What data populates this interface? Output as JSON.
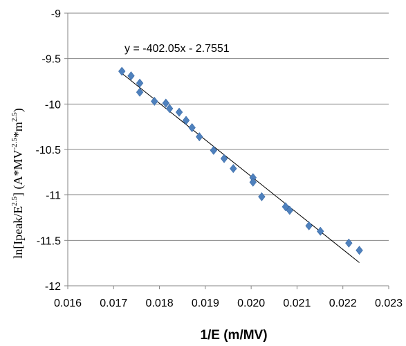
{
  "chart_data": {
    "type": "scatter",
    "title": "",
    "xlabel": "1/E (m/MV)",
    "ylabel": {
      "prefix": "ln[Ipeak/E",
      "exp1": "2.5",
      "middle": "] (A*MV",
      "exp2": "-2.5",
      "middle2": "*m",
      "exp3": "2.5",
      "suffix": ")"
    },
    "xlim": [
      0.016,
      0.023
    ],
    "ylim": [
      -12,
      -9
    ],
    "xticks": [
      "0.016",
      "0.017",
      "0.018",
      "0.019",
      "0.020",
      "0.021",
      "0.022",
      "0.023"
    ],
    "yticks": [
      "-12",
      "-11.5",
      "-11",
      "-10.5",
      "-10",
      "-9.5",
      "-9"
    ],
    "grid": "horizontal",
    "legend": "none",
    "marker_color": "#4F81BD",
    "marker_shape": "diamond",
    "points": [
      {
        "x": 0.01718,
        "y": -9.64
      },
      {
        "x": 0.01738,
        "y": -9.69
      },
      {
        "x": 0.01757,
        "y": -9.77
      },
      {
        "x": 0.01757,
        "y": -9.87
      },
      {
        "x": 0.01789,
        "y": -9.97
      },
      {
        "x": 0.01814,
        "y": -9.99
      },
      {
        "x": 0.01822,
        "y": -10.05
      },
      {
        "x": 0.01843,
        "y": -10.09
      },
      {
        "x": 0.01858,
        "y": -10.18
      },
      {
        "x": 0.01871,
        "y": -10.26
      },
      {
        "x": 0.01887,
        "y": -10.36
      },
      {
        "x": 0.01918,
        "y": -10.51
      },
      {
        "x": 0.01941,
        "y": -10.6
      },
      {
        "x": 0.01961,
        "y": -10.71
      },
      {
        "x": 0.02004,
        "y": -10.81
      },
      {
        "x": 0.02004,
        "y": -10.86
      },
      {
        "x": 0.02023,
        "y": -11.02
      },
      {
        "x": 0.02075,
        "y": -11.13
      },
      {
        "x": 0.02084,
        "y": -11.17
      },
      {
        "x": 0.02126,
        "y": -11.34
      },
      {
        "x": 0.02151,
        "y": -11.4
      },
      {
        "x": 0.02213,
        "y": -11.53
      },
      {
        "x": 0.02236,
        "y": -11.61
      }
    ],
    "trendline": {
      "type": "linear",
      "slope": -402.05,
      "intercept": -2.7551,
      "x_start": 0.01718,
      "x_end": 0.02236,
      "color": "#000000",
      "equation_label": "y = -402.05x - 2.7551"
    }
  }
}
